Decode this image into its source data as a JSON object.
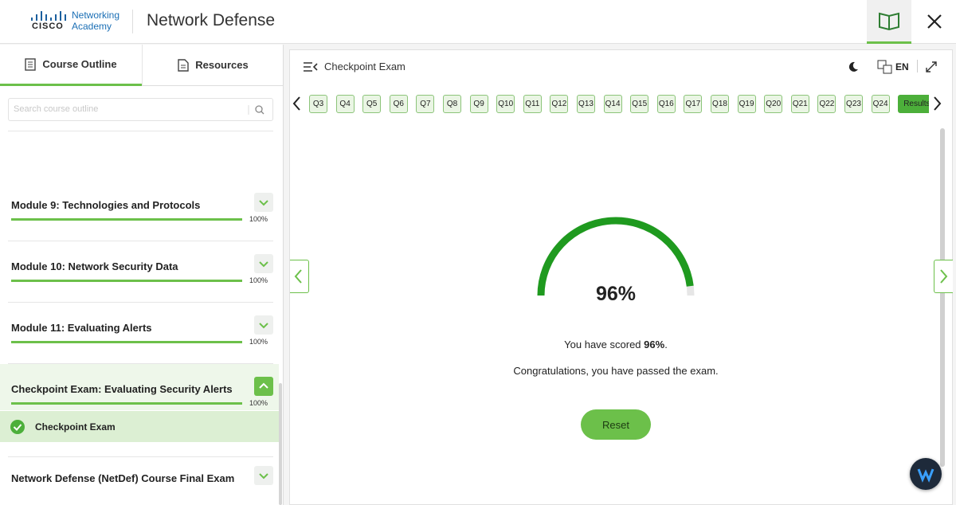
{
  "header": {
    "logo_brand": "CISCO",
    "logo_text": [
      "Networking",
      "Academy"
    ],
    "title": "Network Defense"
  },
  "sidebar": {
    "tabs": [
      "Course Outline",
      "Resources"
    ],
    "search_placeholder": "Search course outline",
    "items": [
      {
        "title": "Module 9: Technologies and Protocols",
        "progress": 100,
        "progress_label": "100%"
      },
      {
        "title": "Module 10: Network Security Data",
        "progress": 100,
        "progress_label": "100%"
      },
      {
        "title": "Module 11: Evaluating Alerts",
        "progress": 100,
        "progress_label": "100%"
      },
      {
        "title": "Checkpoint Exam: Evaluating Security Alerts",
        "progress": 100,
        "progress_label": "100%",
        "expanded": true,
        "children": [
          {
            "title": "Checkpoint Exam",
            "completed": true
          }
        ]
      },
      {
        "title": "Network Defense (NetDef) Course Final Exam"
      }
    ]
  },
  "exam": {
    "title": "Checkpoint Exam",
    "language": "EN",
    "questions": [
      "Q3",
      "Q4",
      "Q5",
      "Q6",
      "Q7",
      "Q8",
      "Q9",
      "Q10",
      "Q11",
      "Q12",
      "Q13",
      "Q14",
      "Q15",
      "Q16",
      "Q17",
      "Q18",
      "Q19",
      "Q20",
      "Q21",
      "Q22",
      "Q23",
      "Q24",
      "Results"
    ],
    "score": {
      "value": 96,
      "label": "96%"
    },
    "message_prefix": "You have scored",
    "message_suffix": ".",
    "congrats": "Congratulations, you have passed the exam.",
    "reset": "Reset"
  }
}
